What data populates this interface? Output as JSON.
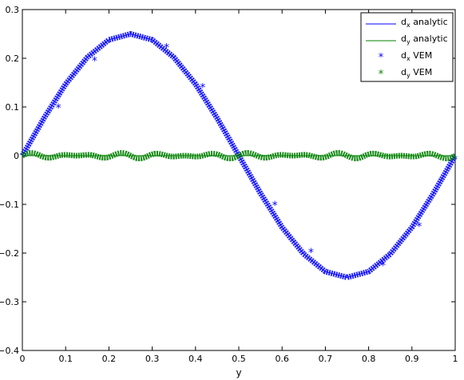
{
  "chart_data": {
    "type": "line",
    "xlabel": "y",
    "ylabel": "",
    "title": "",
    "xlim": [
      0,
      1
    ],
    "ylim": [
      -0.4,
      0.3
    ],
    "x_ticks": [
      "0",
      "0.1",
      "0.2",
      "0.3",
      "0.4",
      "0.5",
      "0.6",
      "0.7",
      "0.8",
      "0.9",
      "1"
    ],
    "y_ticks": [
      "0.3",
      "0.2",
      "0.1",
      "0",
      "−0.1",
      "−0.2",
      "−0.3",
      "−0.4"
    ],
    "legend_position": "top-right",
    "legend": [
      {
        "main": "d",
        "sub": "x",
        "rest": " analytic"
      },
      {
        "main": "d",
        "sub": "y",
        "rest": " analytic"
      },
      {
        "main": "d",
        "sub": "x",
        "rest": " VEM"
      },
      {
        "main": "d",
        "sub": "y",
        "rest": " VEM"
      }
    ],
    "series": [
      {
        "kind": "line",
        "color": "#0000ff",
        "x": [
          0,
          0.05,
          0.1,
          0.15,
          0.2,
          0.25,
          0.3,
          0.35,
          0.4,
          0.45,
          0.5,
          0.55,
          0.6,
          0.65,
          0.7,
          0.75,
          0.8,
          0.85,
          0.9,
          0.95,
          1
        ],
        "y": [
          0,
          0.077,
          0.147,
          0.202,
          0.238,
          0.25,
          0.238,
          0.202,
          0.147,
          0.077,
          0,
          -0.077,
          -0.147,
          -0.202,
          -0.238,
          -0.25,
          -0.238,
          -0.202,
          -0.147,
          -0.077,
          0
        ]
      },
      {
        "kind": "line",
        "color": "#008000",
        "x": [
          0,
          1
        ],
        "y": [
          0,
          0
        ]
      },
      {
        "kind": "marker",
        "color": "#0000ff",
        "x": [
          0.0833,
          0.1667,
          0.3333,
          0.4167,
          0.5833,
          0.6667,
          0.8333,
          0.9167
        ],
        "y": [
          0.098,
          0.195,
          0.222,
          0.14,
          -0.102,
          -0.198,
          -0.225,
          -0.145
        ]
      },
      {
        "kind": "marker",
        "color": "#008000",
        "x": [],
        "y": []
      }
    ]
  }
}
